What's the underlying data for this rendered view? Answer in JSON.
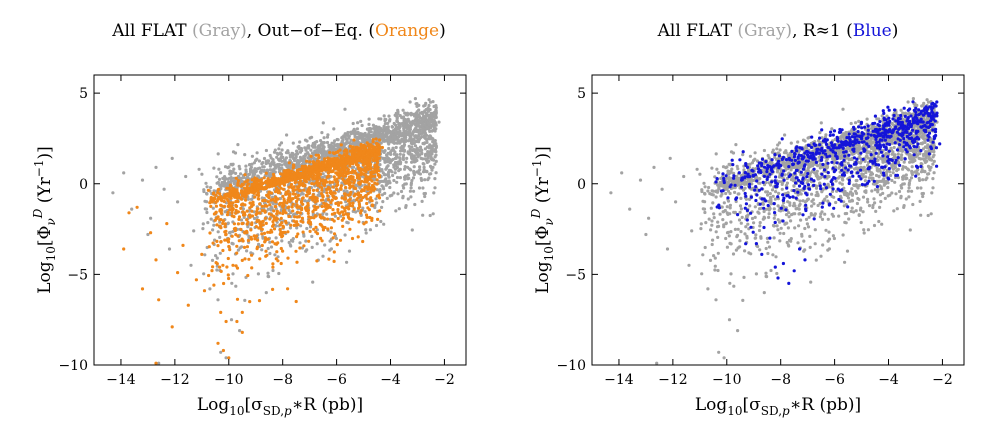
{
  "figure": {
    "panels": [
      {
        "title_parts": [
          {
            "text": "All FLAT ",
            "color": "#000000"
          },
          {
            "text": "(Gray)",
            "color": "#a3a3a3"
          },
          {
            "text": ", Out−of−Eq. (",
            "color": "#000000"
          },
          {
            "text": "Orange",
            "color": "#f0871a"
          },
          {
            "text": ")",
            "color": "#000000"
          }
        ],
        "xlabel": "Log₁₀[σSD,p∗R (pb)]",
        "ylabel": "Log₁₀[ΦνD (Yr⁻¹)]",
        "highlight_color": "#f0871a",
        "highlight_name": "Out-of-Eq."
      },
      {
        "title_parts": [
          {
            "text": "All FLAT ",
            "color": "#000000"
          },
          {
            "text": "(Gray)",
            "color": "#a3a3a3"
          },
          {
            "text": ", R≈1 (",
            "color": "#000000"
          },
          {
            "text": "Blue",
            "color": "#1414d9"
          },
          {
            "text": ")",
            "color": "#000000"
          }
        ],
        "xlabel": "Log₁₀[σSD,p∗R (pb)]",
        "ylabel": "Log₁₀[ΦνD (Yr⁻¹)]",
        "highlight_color": "#1414d9",
        "highlight_name": "R≈1"
      }
    ]
  },
  "chart_data": [
    {
      "type": "scatter",
      "title": "All FLAT (Gray), Out−of−Eq. (Orange)",
      "xlabel": "Log10[σSD,p*R (pb)]",
      "ylabel": "Log10[ΦνD (Yr⁻¹)]",
      "xlim": [
        -15,
        -1.2
      ],
      "ylim": [
        -10,
        6
      ],
      "xticks": [
        -14,
        -12,
        -10,
        -8,
        -6,
        -4,
        -2
      ],
      "yticks": [
        -10,
        -5,
        0,
        5
      ],
      "xtick_labels": [
        "−14",
        "−12",
        "−10",
        "−8",
        "−6",
        "−4",
        "−2"
      ],
      "ytick_labels": [
        "−10",
        "−5",
        "0",
        "5"
      ],
      "series": [
        {
          "name": "All FLAT",
          "color": "#a3a3a3",
          "seed": 11,
          "count": 2400,
          "core": {
            "x_range": [
              -11,
              -2.3
            ],
            "y_at_x_min": -0.8,
            "y_at_x_max": 3.2,
            "lower_spread": 5.2,
            "upper_spread": 1.1
          },
          "points": [
            [
              -14.3,
              -0.5
            ],
            [
              -13.9,
              0.6
            ],
            [
              -13.6,
              -1.4
            ],
            [
              -13.2,
              0.2
            ],
            [
              -12.9,
              -1.9
            ],
            [
              -12.7,
              0.9
            ],
            [
              -12.4,
              -0.3
            ],
            [
              -12.1,
              1.4
            ],
            [
              -11.9,
              -1.0
            ],
            [
              -11.6,
              0.4
            ],
            [
              -11.3,
              -2.6
            ],
            [
              -11.1,
              0.8
            ],
            [
              -12.6,
              -9.9
            ],
            [
              -10.3,
              -9.3
            ],
            [
              -10.1,
              -9.6
            ],
            [
              -9.9,
              -7.5
            ],
            [
              -10.4,
              -6.4
            ],
            [
              -11.4,
              -4.5
            ],
            [
              -12.2,
              -3.6
            ],
            [
              -13.0,
              -2.8
            ],
            [
              -10.7,
              -5.8
            ],
            [
              -9.6,
              -8.1
            ],
            [
              -2.3,
              4.2
            ],
            [
              -2.4,
              3.9
            ],
            [
              -2.6,
              4.0
            ],
            [
              -2.2,
              3.4
            ],
            [
              -2.3,
              2.0
            ],
            [
              -2.5,
              1.8
            ]
          ]
        },
        {
          "name": "Out-of-Eq.",
          "color": "#f0871a",
          "seed": 23,
          "count": 1900,
          "core": {
            "x_range": [
              -10.8,
              -4.4
            ],
            "y_at_x_min": -1.2,
            "y_at_x_max": 1.6,
            "lower_spread": 4.8,
            "upper_spread": 0.6
          },
          "points": [
            [
              -13.9,
              -3.6
            ],
            [
              -13.7,
              -1.6
            ],
            [
              -13.4,
              -1.3
            ],
            [
              -13.2,
              -5.8
            ],
            [
              -12.9,
              -2.7
            ],
            [
              -12.7,
              -4.2
            ],
            [
              -12.6,
              -6.4
            ],
            [
              -12.3,
              -2.2
            ],
            [
              -12.1,
              -7.9
            ],
            [
              -11.9,
              -4.9
            ],
            [
              -11.7,
              -3.4
            ],
            [
              -11.5,
              -6.7
            ],
            [
              -11.2,
              -5.3
            ],
            [
              -11.0,
              -3.9
            ],
            [
              -12.7,
              -9.9
            ],
            [
              -10.4,
              -8.8
            ],
            [
              -10.2,
              -9.2
            ],
            [
              -10.0,
              -9.6
            ],
            [
              -10.1,
              -7.6
            ],
            [
              -10.3,
              -7.1
            ],
            [
              -9.7,
              -7.6
            ],
            [
              -9.5,
              -8.2
            ],
            [
              -10.9,
              -5.9
            ],
            [
              -4.3,
              2.0
            ],
            [
              -4.5,
              1.8
            ],
            [
              -4.6,
              1.5
            ]
          ]
        }
      ]
    },
    {
      "type": "scatter",
      "title": "All FLAT (Gray), R≈1 (Blue)",
      "xlabel": "Log10[σSD,p*R (pb)]",
      "ylabel": "Log10[ΦνD (Yr⁻¹)]",
      "xlim": [
        -15,
        -1.2
      ],
      "ylim": [
        -10,
        6
      ],
      "xticks": [
        -14,
        -12,
        -10,
        -8,
        -6,
        -4,
        -2
      ],
      "yticks": [
        -10,
        -5,
        0,
        5
      ],
      "xtick_labels": [
        "−14",
        "−12",
        "−10",
        "−8",
        "−6",
        "−4",
        "−2"
      ],
      "ytick_labels": [
        "−10",
        "−5",
        "0",
        "5"
      ],
      "series": [
        {
          "name": "All FLAT",
          "color": "#a3a3a3",
          "seed": 11,
          "count": 2400,
          "core": {
            "x_range": [
              -11,
              -2.3
            ],
            "y_at_x_min": -0.8,
            "y_at_x_max": 3.2,
            "lower_spread": 5.2,
            "upper_spread": 1.1
          },
          "points": [
            [
              -14.3,
              -0.5
            ],
            [
              -13.9,
              0.6
            ],
            [
              -13.6,
              -1.4
            ],
            [
              -13.2,
              0.2
            ],
            [
              -12.9,
              -1.9
            ],
            [
              -12.7,
              0.9
            ],
            [
              -12.4,
              -0.3
            ],
            [
              -12.1,
              1.4
            ],
            [
              -11.9,
              -1.0
            ],
            [
              -11.6,
              0.4
            ],
            [
              -11.3,
              -2.6
            ],
            [
              -11.1,
              0.8
            ],
            [
              -12.6,
              -9.9
            ],
            [
              -10.3,
              -9.3
            ],
            [
              -10.1,
              -9.6
            ],
            [
              -9.9,
              -7.5
            ],
            [
              -10.4,
              -6.4
            ],
            [
              -11.4,
              -4.5
            ],
            [
              -12.2,
              -3.6
            ],
            [
              -13.0,
              -2.8
            ],
            [
              -10.7,
              -5.8
            ],
            [
              -9.6,
              -8.1
            ],
            [
              -2.3,
              4.2
            ],
            [
              -2.4,
              3.9
            ],
            [
              -2.6,
              4.0
            ],
            [
              -2.2,
              3.4
            ],
            [
              -2.3,
              2.0
            ],
            [
              -2.5,
              1.8
            ]
          ]
        },
        {
          "name": "R≈1",
          "color": "#1414d9",
          "seed": 37,
          "count": 750,
          "core": {
            "x_range": [
              -10.5,
              -2.2
            ],
            "y_at_x_min": -0.4,
            "y_at_x_max": 3.6,
            "lower_spread": 3.4,
            "upper_spread": 0.9
          },
          "points": [
            [
              -10.4,
              0.1
            ],
            [
              -10.2,
              -0.4
            ],
            [
              -9.8,
              1.3
            ],
            [
              -9.6,
              -1.7
            ],
            [
              -9.3,
              0.6
            ],
            [
              -9.1,
              -2.4
            ],
            [
              -8.9,
              -3.3
            ],
            [
              -8.7,
              -3.9
            ],
            [
              -8.4,
              -3.0
            ],
            [
              -8.2,
              -4.6
            ],
            [
              -8.1,
              -5.2
            ],
            [
              -7.9,
              -4.4
            ],
            [
              -7.7,
              -5.5
            ],
            [
              -7.5,
              -4.8
            ],
            [
              -7.3,
              -3.6
            ],
            [
              -7.1,
              -4.2
            ],
            [
              -2.3,
              4.3
            ],
            [
              -2.2,
              3.9
            ],
            [
              -2.1,
              2.2
            ],
            [
              -2.3,
              2.6
            ],
            [
              -2.4,
              4.1
            ]
          ]
        }
      ]
    }
  ]
}
